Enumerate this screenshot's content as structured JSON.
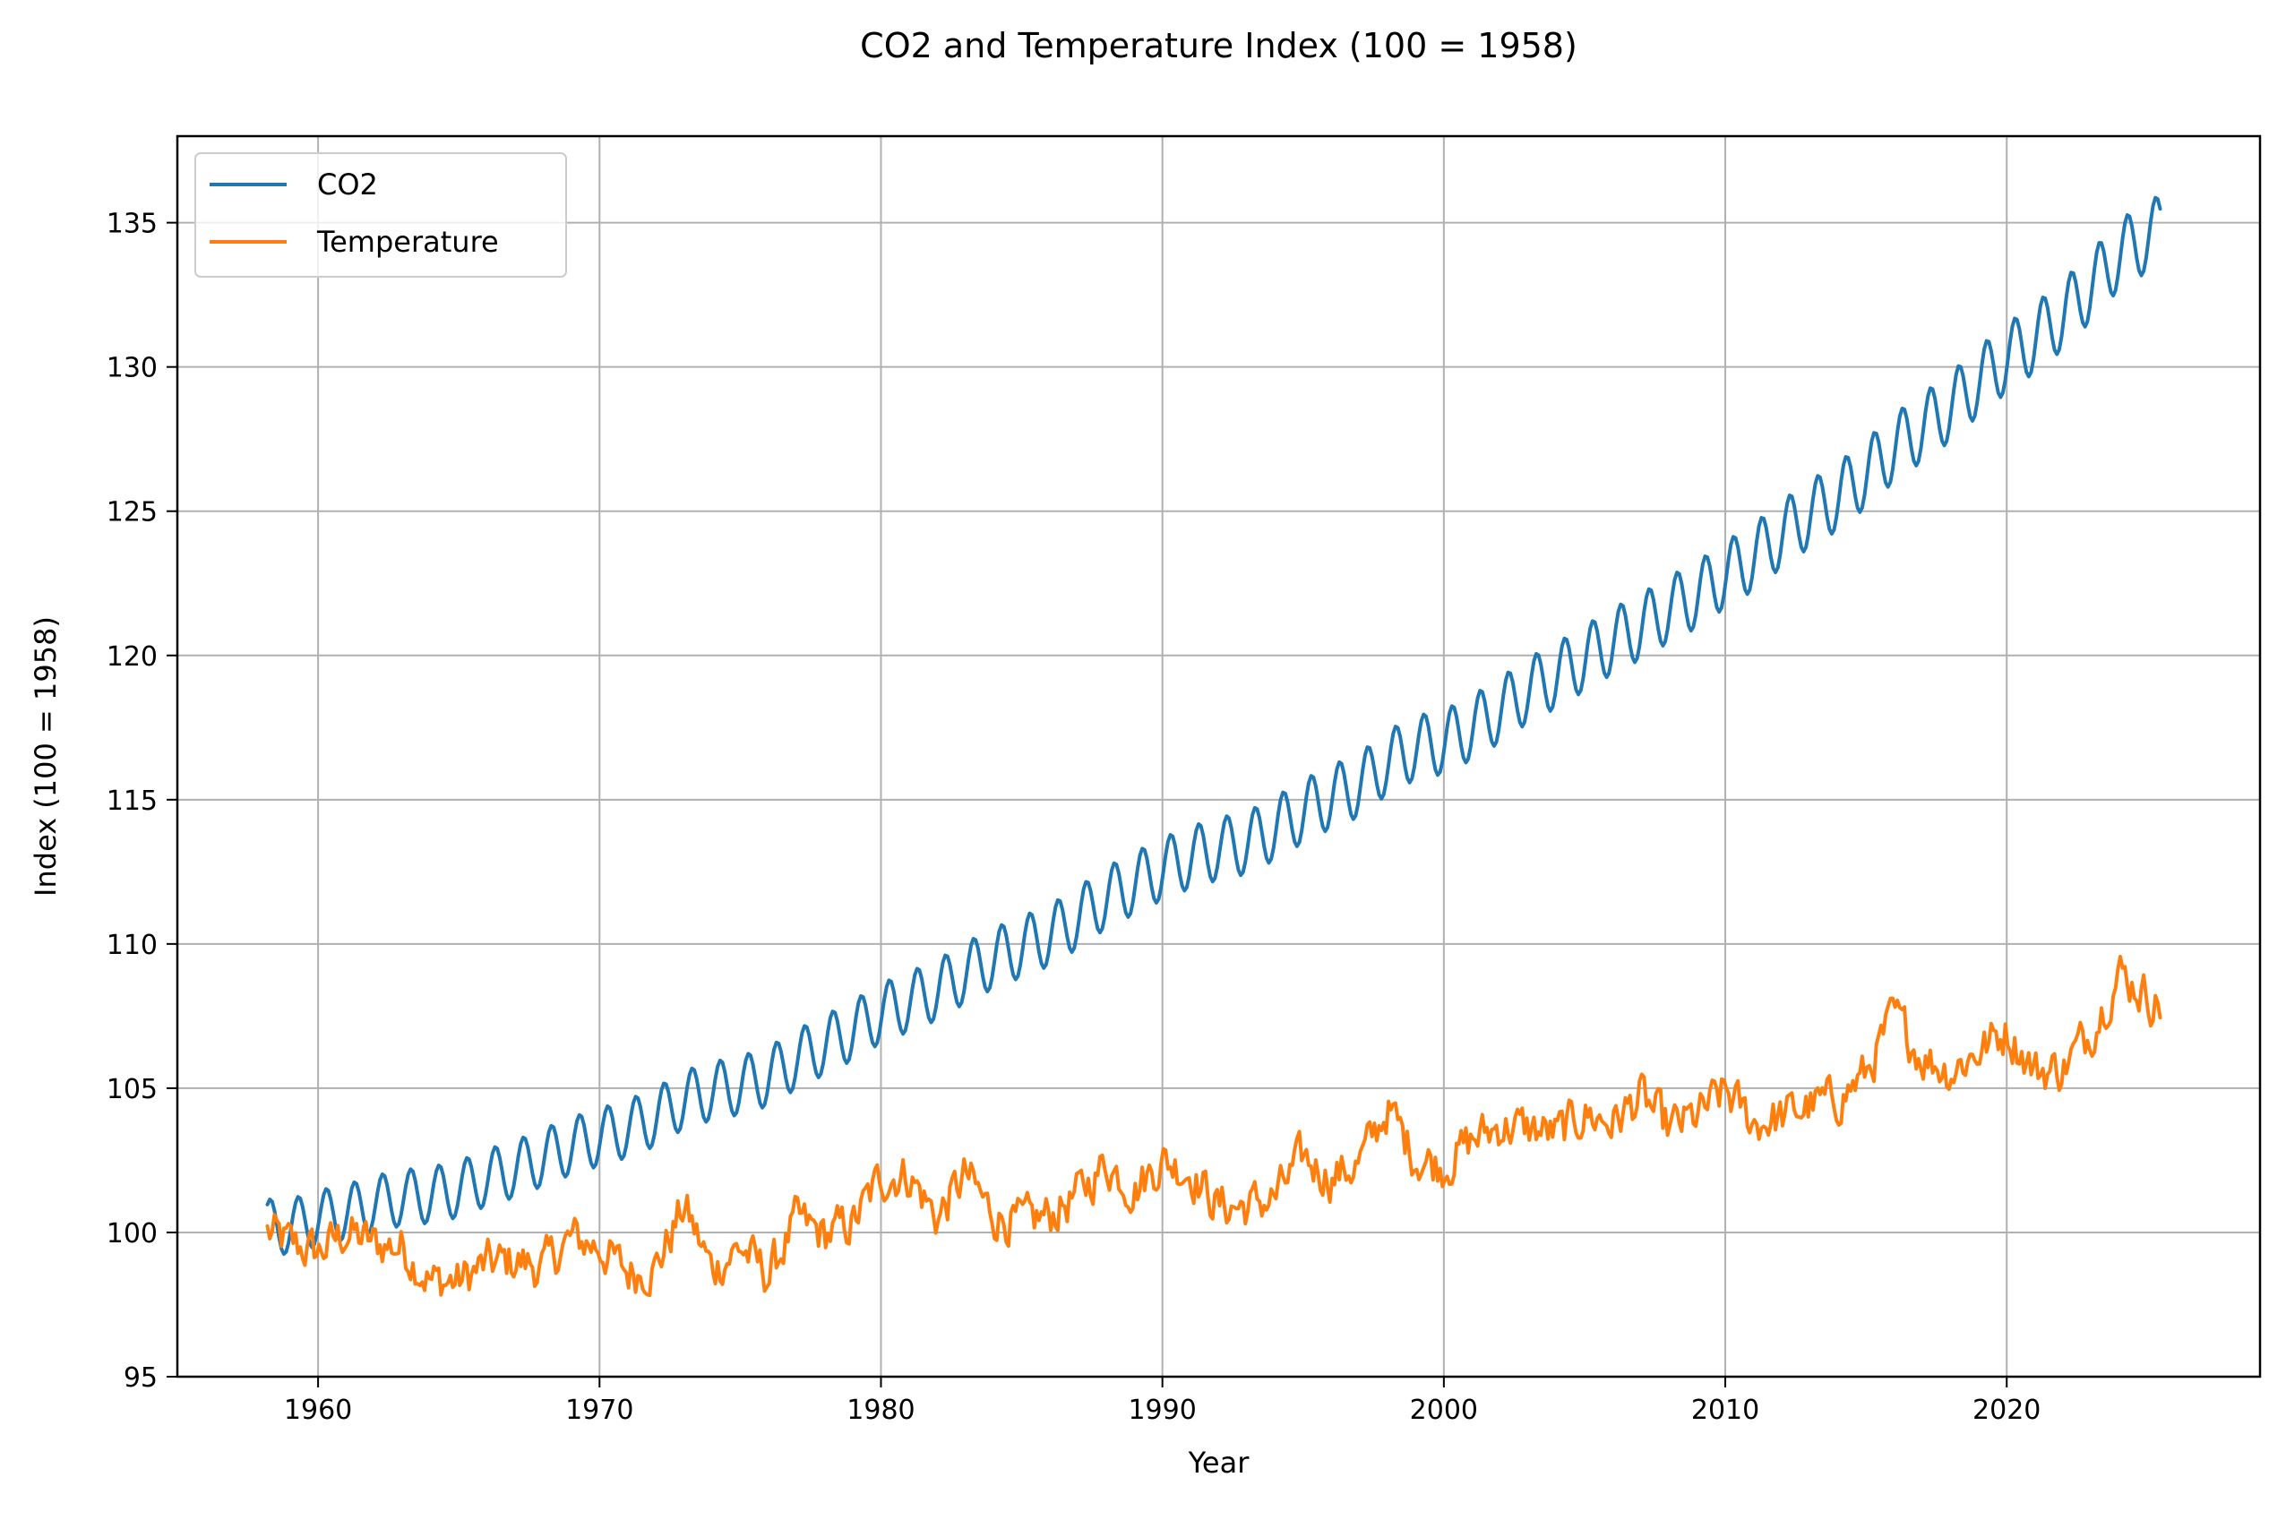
{
  "chart_data": {
    "type": "line",
    "title": "CO2 and Temperature Index (100 = 1958)",
    "xlabel": "Year",
    "ylabel": "Index (100 = 1958)",
    "xlim": [
      1955,
      2029
    ],
    "ylim": [
      95,
      138
    ],
    "x_ticks": [
      1960,
      1970,
      1980,
      1990,
      2000,
      2010,
      2020
    ],
    "x_tick_labels": [
      "1960",
      "1970",
      "1980",
      "1990",
      "2000",
      "2010",
      "2020"
    ],
    "y_ticks": [
      95,
      100,
      105,
      110,
      115,
      120,
      125,
      130,
      135
    ],
    "y_tick_labels": [
      "95",
      "100",
      "105",
      "110",
      "115",
      "120",
      "125",
      "130",
      "135"
    ],
    "grid": true,
    "legend_position": "top-left",
    "colors": {
      "co2": "#1f77b4",
      "temperature": "#ff7f0e"
    },
    "series": [
      {
        "name": "CO2",
        "color": "#1f77b4",
        "x": [
          1958.2,
          1959,
          1960,
          1961,
          1962,
          1963,
          1964,
          1965,
          1966,
          1967,
          1968,
          1969,
          1970,
          1971,
          1972,
          1973,
          1974,
          1975,
          1976,
          1977,
          1978,
          1979,
          1980,
          1981,
          1982,
          1983,
          1984,
          1985,
          1986,
          1987,
          1988,
          1989,
          1990,
          1991,
          1992,
          1993,
          1994,
          1995,
          1996,
          1997,
          1998,
          1999,
          2000,
          2001,
          2002,
          2003,
          2004,
          2005,
          2006,
          2007,
          2008,
          2009,
          2010,
          2011,
          2012,
          2013,
          2014,
          2015,
          2016,
          2017,
          2018,
          2019,
          2020,
          2021,
          2022,
          2023,
          2024,
          2025.5
        ],
        "y": [
          100.2,
          100.2,
          100.5,
          100.7,
          101.0,
          101.2,
          101.3,
          101.5,
          101.9,
          102.2,
          102.6,
          103.0,
          103.3,
          103.6,
          104.0,
          104.6,
          104.9,
          105.1,
          105.4,
          106.0,
          106.5,
          107.0,
          107.6,
          108.0,
          108.4,
          109.0,
          109.5,
          109.9,
          110.3,
          110.9,
          111.6,
          112.1,
          112.6,
          113.0,
          113.3,
          113.5,
          114.0,
          114.6,
          115.1,
          115.5,
          116.3,
          116.8,
          117.0,
          117.5,
          118.1,
          118.8,
          119.3,
          119.9,
          120.5,
          121.0,
          121.6,
          122.1,
          122.8,
          123.4,
          124.2,
          124.9,
          125.5,
          126.3,
          127.2,
          127.9,
          128.6,
          129.5,
          130.3,
          131.0,
          131.8,
          132.8,
          133.9,
          134.8
        ],
        "seasonal_amplitude": 0.95
      },
      {
        "name": "Temperature",
        "color": "#ff7f0e",
        "x": [
          1958.2,
          1959,
          1960,
          1961,
          1962,
          1963,
          1964,
          1965,
          1966,
          1967,
          1968,
          1969,
          1970,
          1971,
          1972,
          1973,
          1974,
          1975,
          1976,
          1977,
          1978,
          1979,
          1980,
          1981,
          1982,
          1983,
          1984,
          1985,
          1986,
          1987,
          1988,
          1989,
          1990,
          1991,
          1992,
          1993,
          1994,
          1995,
          1996,
          1997,
          1998,
          1999,
          2000,
          2001,
          2002,
          2003,
          2004,
          2005,
          2006,
          2007,
          2008,
          2009,
          2010,
          2011,
          2012,
          2013,
          2014,
          2015,
          2016,
          2017,
          2018,
          2019,
          2020,
          2021,
          2022,
          2023,
          2024,
          2025.5
        ],
        "y": [
          100.0,
          99.6,
          99.3,
          100.0,
          99.6,
          99.5,
          98.3,
          98.3,
          98.9,
          99.0,
          98.8,
          99.8,
          99.5,
          98.6,
          98.8,
          100.9,
          98.7,
          99.5,
          98.5,
          100.4,
          99.9,
          100.3,
          101.9,
          102.0,
          100.5,
          102.0,
          100.6,
          100.3,
          100.6,
          101.3,
          102.4,
          101.5,
          102.5,
          102.1,
          100.9,
          100.9,
          101.2,
          102.6,
          101.9,
          102.4,
          104.3,
          102.6,
          102.3,
          103.2,
          103.7,
          103.6,
          103.4,
          104.1,
          103.8,
          104.7,
          103.6,
          104.0,
          104.9,
          103.8,
          104.0,
          104.4,
          104.6,
          105.5,
          107.5,
          106.1,
          105.6,
          106.3,
          107.0,
          105.6,
          105.7,
          107.0,
          109.0,
          107.8
        ],
        "noise_amplitude": 0.7
      }
    ]
  }
}
